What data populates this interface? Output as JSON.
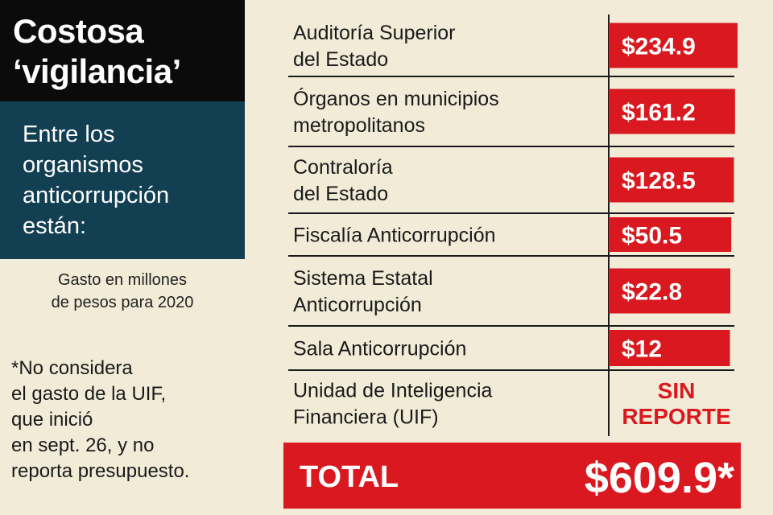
{
  "header": {
    "title_lines": [
      "Costosa",
      "‘vigilancia’"
    ],
    "intro_lines": [
      "Entre los",
      "organismos",
      "anticorrupción",
      "están:"
    ]
  },
  "unit_note_lines": [
    "Gasto en millones",
    "de pesos para 2020"
  ],
  "footnote_lines": [
    "*No considera",
    "el gasto de la UIF,",
    "que inició",
    "en sept. 26, y no",
    "reporta presupuesto."
  ],
  "colors": {
    "background": "#f2ebd7",
    "title_bg": "#0b0b0b",
    "intro_bg": "#123f52",
    "bar": "#d9181f"
  },
  "chart_data": {
    "type": "bar",
    "orientation": "horizontal",
    "categories": [
      [
        "Auditoría Superior",
        "del Estado"
      ],
      [
        "Órganos en municipios",
        "metropolitanos"
      ],
      [
        "Contraloría",
        "del Estado"
      ],
      [
        "Fiscalía Anticorrupción"
      ],
      [
        "Sistema Estatal",
        "Anticorrupción"
      ],
      [
        "Sala Anticorrupción"
      ],
      [
        "Unidad de Inteligencia",
        "Financiera (UIF)"
      ]
    ],
    "values": [
      234.9,
      161.2,
      128.5,
      50.5,
      22.8,
      12,
      null
    ],
    "value_labels": [
      "$234.9",
      "$161.2",
      "$128.5",
      "$50.5",
      "$22.8",
      "$12",
      ""
    ],
    "no_report_label": [
      "SIN",
      "REPORTE"
    ],
    "total": {
      "label": "TOTAL",
      "value": 609.9,
      "value_label": "$609.9*"
    },
    "unit": "millones de pesos"
  }
}
